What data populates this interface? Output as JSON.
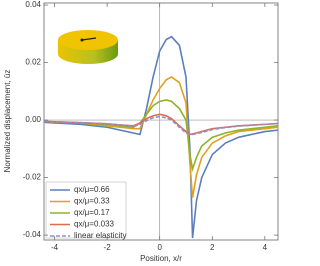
{
  "chart_data": {
    "type": "line",
    "xlabel": "Position, x/r",
    "ylabel": "Normalized displacement, ūz",
    "xlim": [
      -4.4,
      4.5
    ],
    "ylim": [
      -0.0417,
      0.0407
    ],
    "xticks": [
      -4,
      -2,
      0,
      2,
      4
    ],
    "yticks": [
      {
        "value": -0.04,
        "label": "-0.04"
      },
      {
        "value": -0.02,
        "label": "-0.02"
      },
      {
        "value": 0,
        "label": "0.00"
      },
      0.02,
      0.04
    ],
    "legend": "lower left",
    "x": [
      -4.4,
      -4,
      -3,
      -2,
      -1.5,
      -1,
      -0.75,
      -0.5,
      -0.25,
      0,
      0.25,
      0.45,
      0.75,
      1,
      1.15,
      1.25,
      1.4,
      1.6,
      2,
      2.5,
      3,
      4,
      4.5
    ],
    "series": [
      {
        "name": "qx/μ=0.66",
        "color": "#5b7fbd",
        "linestyle": "solid",
        "values": [
          -0.0008,
          -0.001,
          -0.0015,
          -0.0025,
          -0.0035,
          -0.0045,
          -0.005,
          0.004,
          0.015,
          0.024,
          0.028,
          0.029,
          0.026,
          0.015,
          -0.01,
          -0.041,
          -0.028,
          -0.02,
          -0.012,
          -0.008,
          -0.006,
          -0.004,
          -0.0035
        ]
      },
      {
        "name": "qx/μ=0.33",
        "color": "#e0a020",
        "linestyle": "solid",
        "values": [
          -0.0005,
          -0.0007,
          -0.001,
          -0.002,
          -0.0025,
          -0.003,
          -0.003,
          0.002,
          0.007,
          0.011,
          0.014,
          0.015,
          0.013,
          0.006,
          -0.015,
          -0.027,
          -0.019,
          -0.013,
          -0.008,
          -0.0055,
          -0.004,
          -0.003,
          -0.0025
        ]
      },
      {
        "name": "qx/μ=0.17",
        "color": "#8db32a",
        "linestyle": "solid",
        "values": [
          -0.0005,
          -0.0006,
          -0.001,
          -0.0015,
          -0.002,
          -0.0025,
          -0.001,
          0.002,
          0.005,
          0.0065,
          0.007,
          0.0065,
          0.004,
          0.0,
          -0.012,
          -0.017,
          -0.013,
          -0.009,
          -0.006,
          -0.0045,
          -0.0035,
          -0.0025,
          -0.002
        ]
      },
      {
        "name": "qx/μ=0.033",
        "color": "#e06b50",
        "linestyle": "solid",
        "values": [
          -0.0005,
          -0.0006,
          -0.0009,
          -0.0013,
          -0.0017,
          -0.002,
          -0.001,
          0.0005,
          0.0015,
          0.002,
          0.0015,
          0.0005,
          -0.002,
          -0.004,
          -0.005,
          -0.0048,
          -0.0045,
          -0.004,
          -0.003,
          -0.0025,
          -0.002,
          -0.0015,
          -0.0012
        ]
      },
      {
        "name": "linear elasticity",
        "color": "#9090c8",
        "linestyle": "dashed",
        "values": [
          -0.0005,
          -0.0006,
          -0.0009,
          -0.0013,
          -0.0017,
          -0.0022,
          -0.0015,
          -0.0002,
          0.0008,
          0.0012,
          0.0008,
          0,
          -0.0025,
          -0.0045,
          -0.005,
          -0.005,
          -0.0047,
          -0.0043,
          -0.0033,
          -0.0026,
          -0.0021,
          -0.0015,
          -0.0012
        ]
      }
    ]
  }
}
